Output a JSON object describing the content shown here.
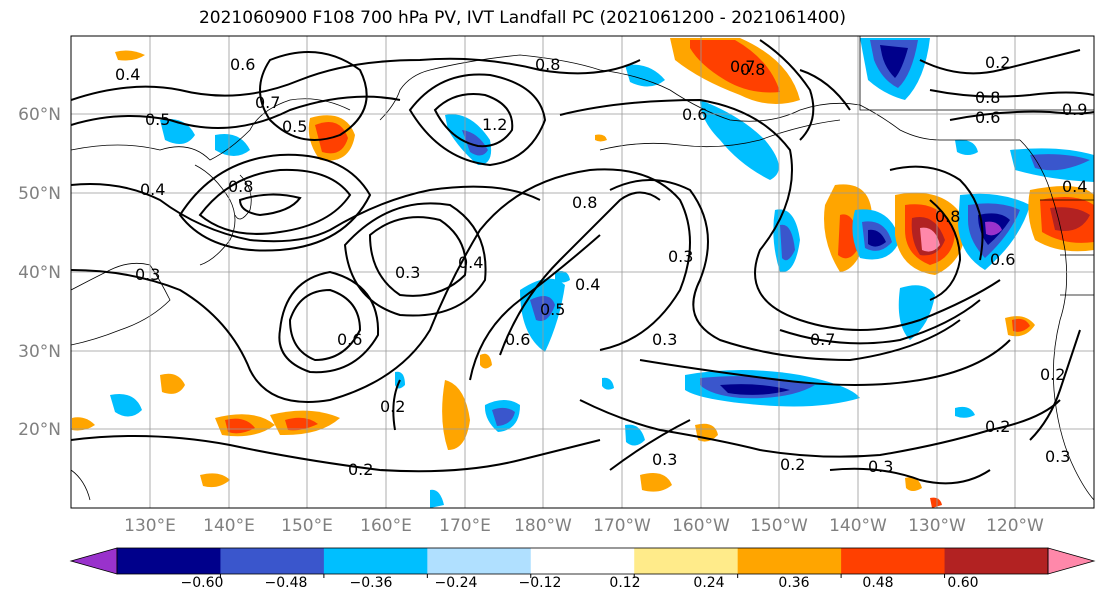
{
  "title": "2021060900 F108 700 hPa PV, IVT Landfall PC (2021061200 - 2021061400)",
  "lat_labels": [
    "60°N",
    "50°N",
    "40°N",
    "30°N",
    "20°N"
  ],
  "lon_labels": [
    "130°E",
    "140°E",
    "150°E",
    "160°E",
    "170°E",
    "180°W",
    "170°W",
    "160°W",
    "150°W",
    "140°W",
    "130°W",
    "120°W"
  ],
  "colorbar": {
    "ticks": [
      "−0.60",
      "−0.48",
      "−0.36",
      "−0.24",
      "−0.12",
      "0.12",
      "0.24",
      "0.36",
      "0.48",
      "0.60"
    ],
    "colors": [
      "#9932cc",
      "#00008b",
      "#3a56cc",
      "#00bfff",
      "#b0e0ff",
      "#ffffff",
      "#ffeb8a",
      "#ffa500",
      "#ff4000",
      "#b22222",
      "#ff88aa"
    ]
  },
  "contour_labels": [
    "0.4",
    "0.6",
    "0.5",
    "0.8",
    "0.7",
    "0.5",
    "0.4",
    "0.8",
    "1.2",
    "0.6",
    "0.8",
    "0.3",
    "0.3",
    "0.4",
    "0.6",
    "0.5",
    "0.4",
    "0.3",
    "0.6",
    "0.3",
    "0.7",
    "0.2",
    "0.2",
    "0.3",
    "0.2",
    "0.3",
    "0.8",
    "0.7",
    "0.6",
    "0.8",
    "0.9",
    "0.2",
    "0.2",
    "0.3",
    "0.2",
    "0.8",
    "0.6",
    "0.4"
  ]
}
